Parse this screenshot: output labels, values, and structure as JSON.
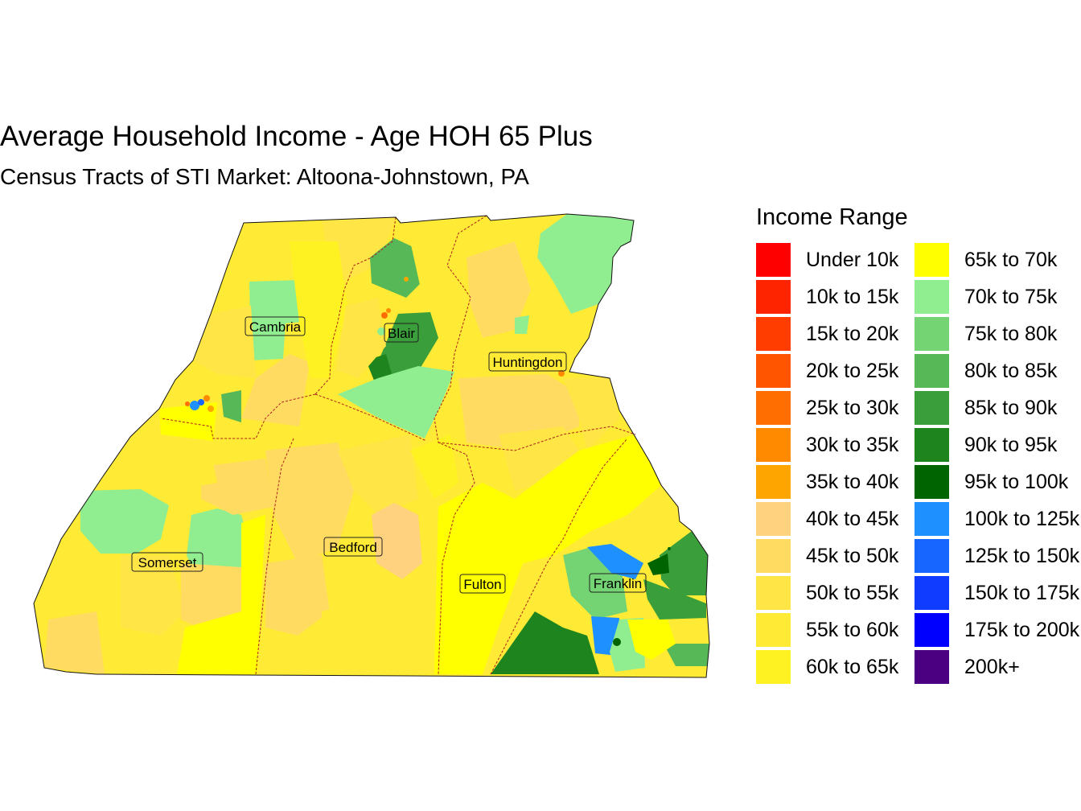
{
  "title": "Average Household Income - Age HOH 65 Plus",
  "subtitle": "Census Tracts of STI Market: Altoona-Johnstown, PA",
  "legend": {
    "title": "Income Range",
    "items": [
      {
        "label": "Under 10k",
        "color": "#FF0000"
      },
      {
        "label": "10k to 15k",
        "color": "#FF2400"
      },
      {
        "label": "15k to 20k",
        "color": "#FF3D00"
      },
      {
        "label": "20k to 25k",
        "color": "#FF5500"
      },
      {
        "label": "25k to 30k",
        "color": "#FF6E00"
      },
      {
        "label": "30k to 35k",
        "color": "#FF8A00"
      },
      {
        "label": "35k to 40k",
        "color": "#FFA500"
      },
      {
        "label": "40k to 45k",
        "color": "#FFD27F"
      },
      {
        "label": "45k to 50k",
        "color": "#FFDB62"
      },
      {
        "label": "50k to 55k",
        "color": "#FFE545"
      },
      {
        "label": "55k to 60k",
        "color": "#FFEA35"
      },
      {
        "label": "60k to 65k",
        "color": "#FFF222"
      },
      {
        "label": "65k to 70k",
        "color": "#FFFF00"
      },
      {
        "label": "70k to 75k",
        "color": "#90EE90"
      },
      {
        "label": "75k to 80k",
        "color": "#74D474"
      },
      {
        "label": "80k to 85k",
        "color": "#57B857"
      },
      {
        "label": "85k to 90k",
        "color": "#3A9E3A"
      },
      {
        "label": "90k to 95k",
        "color": "#1E841E"
      },
      {
        "label": "95k to 100k",
        "color": "#006400"
      },
      {
        "label": "100k to 125k",
        "color": "#1E90FF"
      },
      {
        "label": "125k to 150k",
        "color": "#1666FF"
      },
      {
        "label": "150k to 175k",
        "color": "#0F3CFF"
      },
      {
        "label": "175k to 200k",
        "color": "#0000FF"
      },
      {
        "label": "200k+",
        "color": "#4B0082"
      }
    ]
  },
  "counties": [
    {
      "name": "Cambria"
    },
    {
      "name": "Blair"
    },
    {
      "name": "Huntingdon"
    },
    {
      "name": "Somerset"
    },
    {
      "name": "Bedford"
    },
    {
      "name": "Fulton"
    },
    {
      "name": "Franklin"
    }
  ]
}
